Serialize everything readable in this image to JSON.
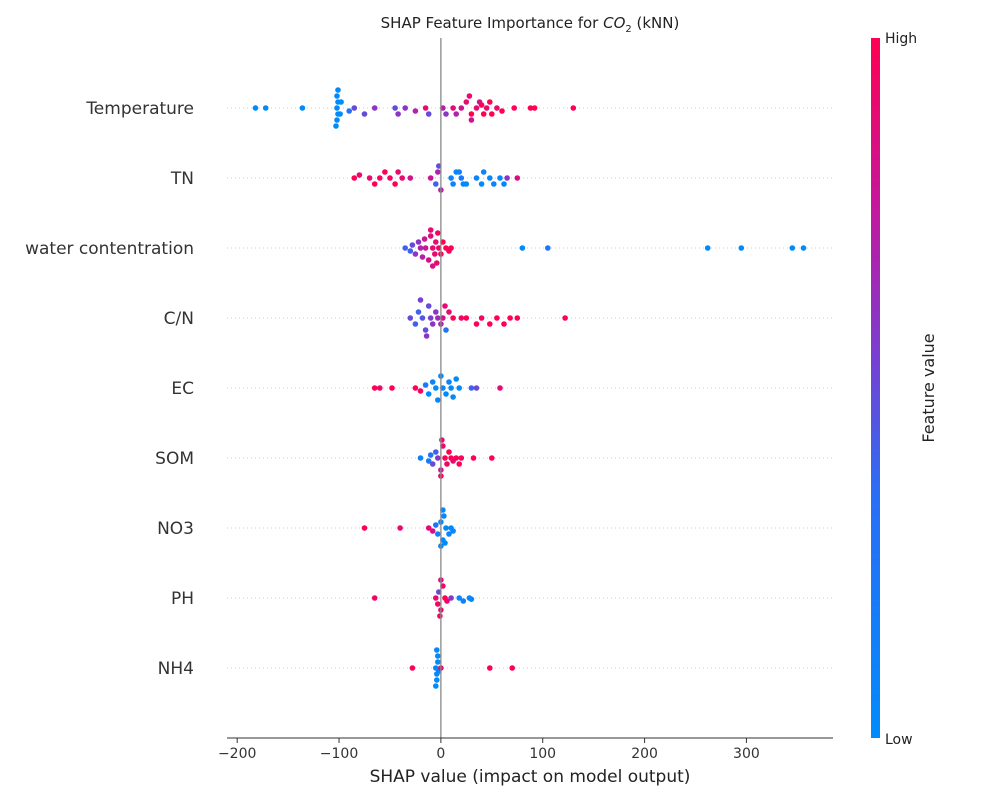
{
  "chart_data": {
    "type": "scatter",
    "title_prefix": "SHAP Feature Importance for ",
    "title_formula": "CO",
    "title_subscript": "2",
    "title_suffix": " (kNN)",
    "xlabel": "SHAP value (impact on model output)",
    "xlim": [
      -210,
      385
    ],
    "xticks": [
      -200,
      -100,
      0,
      100,
      200,
      300
    ],
    "xtick_labels": [
      "−200",
      "−100",
      "0",
      "100",
      "200",
      "300"
    ],
    "zero_line": 0,
    "grid": false,
    "legend": "colorbar-right",
    "colorbar": {
      "title": "Feature value",
      "high_label": "High",
      "low_label": "Low",
      "low_color": "#008bfb",
      "high_color": "#ff0052"
    },
    "features": [
      {
        "name": "Temperature",
        "points": [
          [
            -182,
            0
          ],
          [
            -172,
            0
          ],
          [
            -136,
            0
          ],
          [
            -102,
            0
          ],
          [
            -101,
            0.1
          ],
          [
            -101,
            -0.1
          ],
          [
            -102,
            0.2
          ],
          [
            -102,
            -0.2
          ],
          [
            -103,
            0.3
          ],
          [
            -101,
            -0.3
          ],
          [
            -99,
            0.1
          ],
          [
            -98,
            -0.1
          ],
          [
            -90,
            0.05
          ],
          [
            -85,
            0
          ],
          [
            -75,
            0.1
          ],
          [
            -65,
            0
          ],
          [
            -45,
            0
          ],
          [
            -42,
            0.1
          ],
          [
            -35,
            0
          ],
          [
            -25,
            0.05
          ],
          [
            -15,
            0
          ],
          [
            -12,
            0.1
          ],
          [
            2,
            0
          ],
          [
            12,
            0
          ],
          [
            15,
            0.1
          ],
          [
            20,
            0
          ],
          [
            25,
            -0.1
          ],
          [
            30,
            0.1
          ],
          [
            35,
            0
          ],
          [
            38,
            -0.1
          ],
          [
            42,
            0.1
          ],
          [
            45,
            0
          ],
          [
            48,
            -0.1
          ],
          [
            50,
            0.1
          ],
          [
            55,
            0
          ],
          [
            60,
            0.05
          ],
          [
            72,
            0
          ],
          [
            88,
            0
          ],
          [
            92,
            0
          ],
          [
            130,
            0
          ],
          [
            30,
            0.2
          ],
          [
            28,
            -0.2
          ],
          [
            5,
            0.1
          ],
          [
            40,
            -0.05
          ]
        ],
        "colors": [
          0,
          0,
          0,
          0,
          0,
          0,
          0,
          0,
          0,
          0,
          0,
          0,
          0.3,
          0.5,
          0.5,
          0.6,
          0.5,
          0.6,
          0.6,
          0.7,
          0.9,
          0.5,
          0.7,
          0.9,
          0.7,
          0.8,
          0.9,
          1,
          0.9,
          0.8,
          1,
          0.9,
          1,
          1,
          0.9,
          1,
          1,
          1,
          1,
          1,
          0.8,
          0.9,
          0.6,
          1
        ]
      },
      {
        "name": "TN",
        "points": [
          [
            -85,
            0
          ],
          [
            -80,
            -0.05
          ],
          [
            -70,
            0
          ],
          [
            -65,
            0.1
          ],
          [
            -60,
            0
          ],
          [
            -55,
            -0.1
          ],
          [
            -50,
            0
          ],
          [
            -45,
            0.1
          ],
          [
            -42,
            -0.1
          ],
          [
            -38,
            0
          ],
          [
            -30,
            0
          ],
          [
            -10,
            0
          ],
          [
            -5,
            0.1
          ],
          [
            -3,
            -0.1
          ],
          [
            0,
            0.2
          ],
          [
            -2,
            -0.2
          ],
          [
            10,
            0
          ],
          [
            12,
            0.1
          ],
          [
            15,
            -0.1
          ],
          [
            20,
            0
          ],
          [
            25,
            0.1
          ],
          [
            35,
            0
          ],
          [
            40,
            0.1
          ],
          [
            42,
            -0.1
          ],
          [
            48,
            0
          ],
          [
            52,
            0.1
          ],
          [
            58,
            0
          ],
          [
            62,
            0.1
          ],
          [
            65,
            0
          ],
          [
            75,
            0
          ],
          [
            18,
            -0.1
          ],
          [
            22,
            0.1
          ]
        ],
        "colors": [
          1,
          0.9,
          0.9,
          1,
          0.95,
          1,
          0.95,
          1,
          0.9,
          0.9,
          0.8,
          0.8,
          0.4,
          0.7,
          0.7,
          0.5,
          0.1,
          0.1,
          0.05,
          0.2,
          0,
          0.1,
          0,
          0.1,
          0.05,
          0.1,
          0.05,
          0,
          0.6,
          0.85,
          0.1,
          0.05
        ]
      },
      {
        "name": "water contentration",
        "points": [
          [
            -35,
            0
          ],
          [
            -30,
            0.05
          ],
          [
            -28,
            -0.05
          ],
          [
            -25,
            0.1
          ],
          [
            -22,
            -0.1
          ],
          [
            -20,
            0
          ],
          [
            -18,
            0.15
          ],
          [
            -16,
            -0.15
          ],
          [
            -15,
            0
          ],
          [
            -12,
            0.2
          ],
          [
            -10,
            -0.2
          ],
          [
            -8,
            0
          ],
          [
            -6,
            0.1
          ],
          [
            -5,
            -0.1
          ],
          [
            -4,
            0.25
          ],
          [
            -3,
            -0.25
          ],
          [
            -2,
            0
          ],
          [
            0,
            0.1
          ],
          [
            2,
            -0.1
          ],
          [
            5,
            0
          ],
          [
            8,
            0.05
          ],
          [
            10,
            0
          ],
          [
            -8,
            0.3
          ],
          [
            -10,
            -0.3
          ],
          [
            80,
            0
          ],
          [
            105,
            0
          ],
          [
            262,
            0
          ],
          [
            295,
            0
          ],
          [
            345,
            0
          ],
          [
            356,
            0
          ]
        ],
        "colors": [
          0.4,
          0.4,
          0.5,
          0.6,
          0.6,
          0.7,
          0.7,
          0.8,
          0.8,
          0.85,
          0.85,
          0.9,
          0.9,
          0.9,
          0.9,
          0.95,
          0.95,
          1,
          1,
          1,
          0.95,
          1,
          0.85,
          0.9,
          0,
          0.2,
          0,
          0,
          0,
          0
        ]
      },
      {
        "name": "C/N",
        "points": [
          [
            -30,
            0
          ],
          [
            -25,
            0.1
          ],
          [
            -22,
            -0.1
          ],
          [
            -18,
            0
          ],
          [
            -15,
            0.2
          ],
          [
            -12,
            -0.2
          ],
          [
            -10,
            0
          ],
          [
            -8,
            0.1
          ],
          [
            -5,
            -0.1
          ],
          [
            -3,
            0
          ],
          [
            0,
            0.1
          ],
          [
            2,
            0
          ],
          [
            5,
            0.2
          ],
          [
            8,
            -0.1
          ],
          [
            12,
            0
          ],
          [
            20,
            0
          ],
          [
            25,
            0
          ],
          [
            35,
            0.1
          ],
          [
            40,
            0
          ],
          [
            48,
            0.1
          ],
          [
            55,
            0
          ],
          [
            62,
            0.1
          ],
          [
            68,
            0
          ],
          [
            75,
            0
          ],
          [
            122,
            0
          ],
          [
            -14,
            0.3
          ],
          [
            -20,
            -0.3
          ],
          [
            4,
            -0.2
          ]
        ],
        "colors": [
          0.5,
          0.4,
          0.4,
          0.45,
          0.5,
          0.5,
          0.55,
          0.6,
          0.6,
          0.65,
          0.7,
          0.8,
          0.3,
          0.9,
          1,
          0.95,
          1,
          1,
          0.95,
          1,
          1,
          1,
          1,
          1,
          1,
          0.6,
          0.55,
          0.9
        ]
      },
      {
        "name": "EC",
        "points": [
          [
            -65,
            0
          ],
          [
            -60,
            0
          ],
          [
            -48,
            0
          ],
          [
            -25,
            0
          ],
          [
            -20,
            0.05
          ],
          [
            -15,
            -0.05
          ],
          [
            -12,
            0.1
          ],
          [
            -8,
            -0.1
          ],
          [
            -5,
            0
          ],
          [
            -3,
            0.2
          ],
          [
            0,
            -0.2
          ],
          [
            2,
            0
          ],
          [
            5,
            0.1
          ],
          [
            8,
            -0.1
          ],
          [
            10,
            0
          ],
          [
            12,
            0.15
          ],
          [
            15,
            -0.15
          ],
          [
            18,
            0
          ],
          [
            30,
            0
          ],
          [
            35,
            0
          ],
          [
            58,
            0
          ]
        ],
        "colors": [
          1,
          0.9,
          1,
          1,
          0.95,
          0.2,
          0,
          0.1,
          0,
          0.05,
          0,
          0.05,
          0,
          0.1,
          0,
          0.05,
          0,
          0.05,
          0.4,
          0.5,
          0.9
        ]
      },
      {
        "name": "SOM",
        "points": [
          [
            -20,
            0
          ],
          [
            -12,
            0.05
          ],
          [
            -10,
            -0.05
          ],
          [
            -8,
            0.1
          ],
          [
            -5,
            -0.1
          ],
          [
            -3,
            0
          ],
          [
            0,
            0.2
          ],
          [
            2,
            -0.2
          ],
          [
            4,
            0
          ],
          [
            6,
            0.1
          ],
          [
            8,
            -0.1
          ],
          [
            10,
            0
          ],
          [
            12,
            0.05
          ],
          [
            15,
            0
          ],
          [
            18,
            0.1
          ],
          [
            20,
            0
          ],
          [
            32,
            0
          ],
          [
            50,
            0
          ],
          [
            0,
            0.3
          ],
          [
            1,
            -0.3
          ]
        ],
        "colors": [
          0.1,
          0.2,
          0.3,
          0.5,
          0.4,
          0.6,
          0.8,
          0.9,
          1,
          0.95,
          1,
          1,
          0.9,
          1,
          1,
          0.95,
          1,
          1,
          1,
          0.9
        ]
      },
      {
        "name": "NO3",
        "points": [
          [
            -75,
            0
          ],
          [
            -40,
            0
          ],
          [
            -12,
            0
          ],
          [
            -8,
            0.05
          ],
          [
            -5,
            -0.05
          ],
          [
            -3,
            0.1
          ],
          [
            0,
            -0.1
          ],
          [
            2,
            0.2
          ],
          [
            3,
            -0.2
          ],
          [
            5,
            0
          ],
          [
            8,
            0.1
          ],
          [
            10,
            0
          ],
          [
            12,
            0.05
          ],
          [
            0,
            0.3
          ],
          [
            2,
            -0.3
          ],
          [
            4,
            0.25
          ]
        ],
        "colors": [
          1,
          0.9,
          0.9,
          0.8,
          0.3,
          0.1,
          0.05,
          0,
          0.05,
          0,
          0.1,
          0,
          0.05,
          0.1,
          0.05,
          0
        ]
      },
      {
        "name": "PH",
        "points": [
          [
            -65,
            0
          ],
          [
            -5,
            0
          ],
          [
            -3,
            0.1
          ],
          [
            -2,
            -0.1
          ],
          [
            0,
            0.2
          ],
          [
            2,
            -0.2
          ],
          [
            4,
            0
          ],
          [
            6,
            0.05
          ],
          [
            10,
            0
          ],
          [
            18,
            0
          ],
          [
            22,
            0.05
          ],
          [
            28,
            0
          ],
          [
            30,
            0.02
          ],
          [
            -1,
            0.3
          ],
          [
            0,
            -0.3
          ]
        ],
        "colors": [
          0.95,
          0.9,
          0.95,
          0.5,
          0.9,
          0.9,
          1,
          0.95,
          0.6,
          0.1,
          0.1,
          0,
          0.05,
          1,
          0.9
        ]
      },
      {
        "name": "NH4",
        "points": [
          [
            -28,
            0
          ],
          [
            -5,
            0
          ],
          [
            -4,
            0.1
          ],
          [
            -3,
            -0.1
          ],
          [
            -4,
            0.2
          ],
          [
            -3,
            -0.2
          ],
          [
            -5,
            0.3
          ],
          [
            -4,
            -0.3
          ],
          [
            -2,
            0.05
          ],
          [
            0,
            0
          ],
          [
            48,
            0
          ],
          [
            70,
            0
          ]
        ],
        "colors": [
          1,
          0.1,
          0,
          0,
          0.05,
          0,
          0,
          0.05,
          0.1,
          0.9,
          1,
          1
        ]
      }
    ]
  }
}
